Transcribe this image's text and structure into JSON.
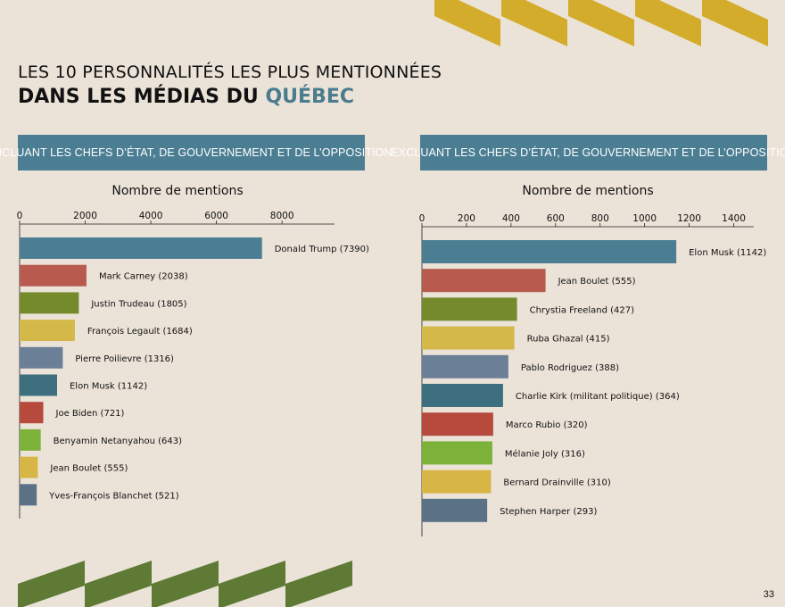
{
  "page": {
    "title_line1": "LES 10 PERSONNALITÉS LES PLUS MENTIONNÉES",
    "title_line2_prefix": "DANS LES MÉDIAS DU ",
    "title_line2_highlight": "QUÉBEC",
    "page_number": "33"
  },
  "colors": {
    "background": "#ebe3d8",
    "header_bg": "#4b7e93",
    "highlight": "#4a7c8f",
    "deco_yellow": "#d4ac2b",
    "deco_green": "#5e7a34"
  },
  "chart_data": [
    {
      "type": "bar",
      "orientation": "horizontal",
      "header": "Incluant les chefs d’État, de gouvernement et de l’opposition",
      "xlabel": "Nombre de mentions",
      "xlim": [
        0,
        9600
      ],
      "xticks": [
        0,
        2000,
        4000,
        6000,
        8000
      ],
      "xticklabels": [
        "0",
        "2000",
        "4000",
        "6000",
        "8000"
      ],
      "axis_position": "top",
      "categories": [
        "Donald Trump",
        "Mark Carney",
        "Justin Trudeau",
        "François Legault",
        "Pierre Poilievre",
        "Elon Musk",
        "Joe Biden",
        "Benyamin Netanyahou",
        "Jean Boulet",
        "Yves-François Blanchet"
      ],
      "values": [
        7390,
        2038,
        1805,
        1684,
        1316,
        1142,
        721,
        643,
        555,
        521
      ],
      "labels": [
        "Donald Trump (7390)",
        "Mark Carney (2038)",
        "Justin Trudeau (1805)",
        "François Legault (1684)",
        "Pierre Poilievre (1316)",
        "Elon Musk (1142)",
        "Joe Biden (721)",
        "Benyamin Netanyahou (643)",
        "Jean Boulet (555)",
        "Yves-François Blanchet (521)"
      ],
      "bar_colors": [
        "#4b7e93",
        "#b95a4f",
        "#758b2b",
        "#d4b94a",
        "#6b7f96",
        "#3e6f7f",
        "#b64a3c",
        "#7db23a",
        "#d8b646",
        "#5b7186"
      ]
    },
    {
      "type": "bar",
      "orientation": "horizontal",
      "header": "Excluant les chefs d’État, de gouvernement et de l’opposition",
      "xlabel": "Nombre de mentions",
      "xlim": [
        0,
        1490
      ],
      "xticks": [
        0,
        200,
        400,
        600,
        800,
        1000,
        1200,
        1400
      ],
      "xticklabels": [
        "0",
        "200",
        "400",
        "600",
        "800",
        "1000",
        "1200",
        "1400"
      ],
      "axis_position": "top",
      "categories": [
        "Elon Musk",
        "Jean Boulet",
        "Chrystia Freeland",
        "Ruba Ghazal",
        "Pablo Rodriguez",
        "Charlie Kirk (militant politique)",
        "Marco Rubio",
        "Mélanie Joly",
        "Bernard Drainville",
        "Stephen Harper"
      ],
      "values": [
        1142,
        555,
        427,
        415,
        388,
        364,
        320,
        316,
        310,
        293
      ],
      "labels": [
        "Elon Musk (1142)",
        "Jean Boulet (555)",
        "Chrystia Freeland (427)",
        "Ruba Ghazal (415)",
        "Pablo Rodriguez (388)",
        "Charlie Kirk (militant politique) (364)",
        "Marco Rubio (320)",
        "Mélanie Joly (316)",
        "Bernard Drainville (310)",
        "Stephen Harper (293)"
      ],
      "bar_colors": [
        "#4b7e93",
        "#b95a4f",
        "#758b2b",
        "#d4b94a",
        "#6b7f96",
        "#3e6f7f",
        "#b64a3c",
        "#7db23a",
        "#d8b646",
        "#5b7186"
      ]
    }
  ]
}
